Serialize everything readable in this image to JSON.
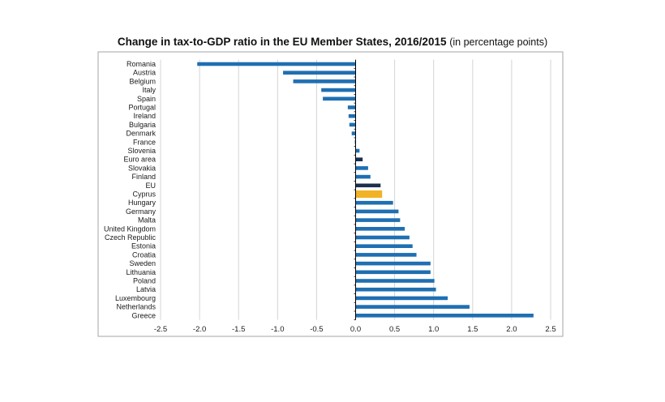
{
  "chart_data": {
    "type": "bar",
    "orientation": "horizontal",
    "title": "Change in tax-to-GDP ratio in the EU Member States, 2016/2015",
    "subtitle": "(in percentage points)",
    "xlabel": "",
    "ylabel": "",
    "xlim": [
      -2.5,
      2.5
    ],
    "xticks": [
      -2.5,
      -2.0,
      -1.5,
      -1.0,
      -0.5,
      0.0,
      0.5,
      1.0,
      1.5,
      2.0,
      2.5
    ],
    "xtick_labels": [
      "-2.5",
      "-2.0",
      "-1.5",
      "-1.0",
      "-0.5",
      "0.0",
      "0.5",
      "1.0",
      "1.5",
      "2.0",
      "2.5"
    ],
    "grid": true,
    "categories": [
      "Romania",
      "Austria",
      "Belgium",
      "Italy",
      "Spain",
      "Portugal",
      "Ireland",
      "Bulgaria",
      "Denmark",
      "France",
      "Slovenia",
      "Euro area",
      "Slovakia",
      "Finland",
      "EU",
      "Cyprus",
      "Hungary",
      "Germany",
      "Malta",
      "United Kingdom",
      "Czech Republic",
      "Estonia",
      "Croatia",
      "Sweden",
      "Lithuania",
      "Poland",
      "Latvia",
      "Luxembourg",
      "Netherlands",
      "Greece"
    ],
    "values": [
      -2.03,
      -0.93,
      -0.8,
      -0.44,
      -0.42,
      -0.1,
      -0.09,
      -0.08,
      -0.05,
      -0.01,
      0.05,
      0.09,
      0.16,
      0.19,
      0.32,
      0.34,
      0.48,
      0.55,
      0.57,
      0.63,
      0.69,
      0.73,
      0.78,
      0.96,
      0.96,
      1.01,
      1.03,
      1.18,
      1.46,
      2.28
    ],
    "colors": {
      "default": "#1f6fb2",
      "aggregate": "#1c2f4f",
      "highlight": "#f2b227",
      "grid": "#d4d4d4",
      "axis": "#000000",
      "frame": "#a6a6a6"
    },
    "aggregates": [
      "Euro area",
      "EU"
    ],
    "highlight": [
      "Cyprus"
    ]
  }
}
